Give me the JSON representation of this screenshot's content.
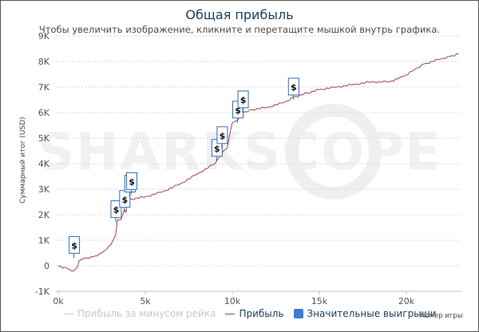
{
  "title": "Общая прибыль",
  "subtitle": "Чтобы увеличить изображение, кликните и перетащите мышкой внутрь графика.",
  "watermark": "SHARKSCOPE",
  "colors": {
    "profit_line": "#a04545",
    "rake_line": "#c8c8c8",
    "marker_border": "#2f6eb5",
    "legend_box": "#3a7bd5",
    "title": "#1f3d5c",
    "grid": "#d8d8d8"
  },
  "legend": {
    "items": [
      {
        "label": "Прибыль за минусом рейка",
        "type": "line",
        "color": "#c8c8c8",
        "active": false
      },
      {
        "label": "Прибыль",
        "type": "line",
        "color": "#a04545",
        "active": true
      },
      {
        "label": "Значительные выигрыши",
        "type": "box",
        "color": "#3a7bd5",
        "active": true
      }
    ]
  },
  "marker_symbol": "$",
  "chart_data": {
    "type": "line",
    "title": "Общая прибыль",
    "subtitle": "Чтобы увеличить изображение, кликните и перетащите мышкой внутрь графика.",
    "xlabel": "Номер игры",
    "ylabel": "Суммарный итог (USD)",
    "xlim": [
      0,
      23500
    ],
    "ylim": [
      -1000,
      9000
    ],
    "x_ticks": [
      "0k",
      "5k",
      "10k",
      "15k",
      "20k"
    ],
    "y_ticks": [
      "-1K",
      "0",
      "1K",
      "2K",
      "3K",
      "4K",
      "5K",
      "6K",
      "7K",
      "8K",
      "9K"
    ],
    "grid": true,
    "legend_position": "bottom",
    "series": [
      {
        "name": "Прибыль",
        "x": [
          0,
          500,
          900,
          1100,
          1200,
          1500,
          2000,
          2500,
          3000,
          3300,
          3400,
          3600,
          3800,
          3900,
          4000,
          4100,
          5000,
          6000,
          7000,
          8000,
          9000,
          9300,
          9500,
          9700,
          9900,
          10000,
          10300,
          10600,
          11000,
          12000,
          13000,
          13500,
          15000,
          16000,
          17000,
          18000,
          19000,
          19800,
          20500,
          21000,
          22000,
          22500,
          23000
        ],
        "values": [
          0,
          -100,
          -200,
          -50,
          200,
          300,
          350,
          500,
          800,
          1200,
          1800,
          1800,
          2200,
          2100,
          2900,
          2600,
          2700,
          2900,
          3200,
          3600,
          4000,
          4300,
          4500,
          4600,
          5300,
          5600,
          5700,
          6000,
          6100,
          6200,
          6400,
          6600,
          6900,
          7000,
          7100,
          7200,
          7200,
          7400,
          7700,
          7900,
          8100,
          8200,
          8300
        ]
      },
      {
        "name": "Прибыль за минусом рейка",
        "hidden": true,
        "x": [],
        "values": []
      }
    ],
    "significant_wins": [
      {
        "x": 900,
        "y": 300
      },
      {
        "x": 3300,
        "y": 1700
      },
      {
        "x": 3800,
        "y": 2100
      },
      {
        "x": 4100,
        "y": 2700
      },
      {
        "x": 4200,
        "y": 2800
      },
      {
        "x": 9100,
        "y": 4100
      },
      {
        "x": 9400,
        "y": 4600
      },
      {
        "x": 10300,
        "y": 5600
      },
      {
        "x": 10600,
        "y": 6000
      },
      {
        "x": 13500,
        "y": 6500
      }
    ]
  }
}
